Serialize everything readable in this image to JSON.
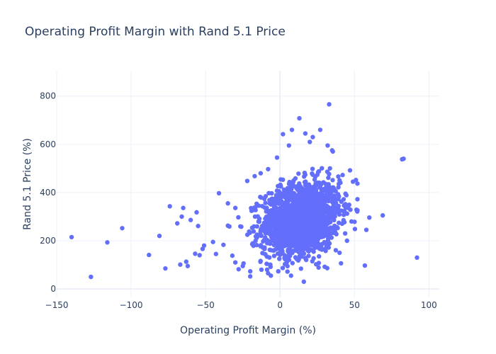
{
  "chart_data": {
    "type": "scatter",
    "title": "Operating Profit Margin with Rand 5.1 Price",
    "xlabel": "Operating Profit Margin (%)",
    "ylabel": "Rand 5.1 Price (%)",
    "xlim": [
      -150,
      107
    ],
    "ylim": [
      -35,
      905
    ],
    "xticks": [
      -150,
      -100,
      -50,
      0,
      50,
      100
    ],
    "yticks": [
      0,
      200,
      400,
      600,
      800
    ],
    "grid": true,
    "colors": {
      "marker": "#636efa",
      "grid": "#ebf0f8",
      "zeroline": "#ebf0f8",
      "text": "#2a3f5f"
    },
    "outliers": [
      {
        "x": -140,
        "y": 215
      },
      {
        "x": -127,
        "y": 50
      },
      {
        "x": -116,
        "y": 193
      },
      {
        "x": -106,
        "y": 252
      },
      {
        "x": -88,
        "y": 141
      },
      {
        "x": -81,
        "y": 220
      },
      {
        "x": -77,
        "y": 85
      },
      {
        "x": -74,
        "y": 343
      },
      {
        "x": -69,
        "y": 272
      },
      {
        "x": -67,
        "y": 101
      },
      {
        "x": -66,
        "y": 300
      },
      {
        "x": -65,
        "y": 336
      },
      {
        "x": -63,
        "y": 113
      },
      {
        "x": -62,
        "y": 95
      },
      {
        "x": -60,
        "y": 286
      },
      {
        "x": -57,
        "y": 146
      },
      {
        "x": -56,
        "y": 318
      },
      {
        "x": -55,
        "y": 261
      },
      {
        "x": -54,
        "y": 140
      },
      {
        "x": -52,
        "y": 166
      },
      {
        "x": -51,
        "y": 180
      },
      {
        "x": -43,
        "y": 145
      },
      {
        "x": -41,
        "y": 397
      },
      {
        "x": -38,
        "y": 183
      },
      {
        "x": -35,
        "y": 355
      },
      {
        "x": -34,
        "y": 259
      },
      {
        "x": -32,
        "y": 138
      },
      {
        "x": -30,
        "y": 336
      },
      {
        "x": -28,
        "y": 297
      },
      {
        "x": -26,
        "y": 258
      },
      {
        "x": -25,
        "y": 95
      },
      {
        "x": -22,
        "y": 448
      },
      {
        "x": -20,
        "y": 73
      },
      {
        "x": -17,
        "y": 468
      },
      {
        "x": -13,
        "y": 480
      },
      {
        "x": -8,
        "y": 497
      },
      {
        "x": -2,
        "y": 545
      },
      {
        "x": 2,
        "y": 642
      },
      {
        "x": 6,
        "y": 595
      },
      {
        "x": 8,
        "y": 660
      },
      {
        "x": 13,
        "y": 708
      },
      {
        "x": 17,
        "y": 645
      },
      {
        "x": 20,
        "y": 610
      },
      {
        "x": 22,
        "y": 630
      },
      {
        "x": 27,
        "y": 660
      },
      {
        "x": 32,
        "y": 595
      },
      {
        "x": 33,
        "y": 766
      },
      {
        "x": 35,
        "y": 575
      },
      {
        "x": 40,
        "y": 450
      },
      {
        "x": 44,
        "y": 395
      },
      {
        "x": 47,
        "y": 492
      },
      {
        "x": 49,
        "y": 445
      },
      {
        "x": 51,
        "y": 452
      },
      {
        "x": 57,
        "y": 97
      },
      {
        "x": 58,
        "y": 245
      },
      {
        "x": 60,
        "y": 296
      },
      {
        "x": 69,
        "y": 305
      },
      {
        "x": 82,
        "y": 538
      },
      {
        "x": 83,
        "y": 540
      },
      {
        "x": 92,
        "y": 130
      },
      {
        "x": 16,
        "y": 30
      },
      {
        "x": -20,
        "y": 52
      },
      {
        "x": 5,
        "y": 72
      },
      {
        "x": -8,
        "y": 65
      },
      {
        "x": 30,
        "y": 92
      },
      {
        "x": 45,
        "y": 200
      },
      {
        "x": 48,
        "y": 280
      },
      {
        "x": 40,
        "y": 150
      },
      {
        "x": -45,
        "y": 195
      },
      {
        "x": -30,
        "y": 110
      }
    ],
    "cluster": {
      "count": 1700,
      "x_mean": 14,
      "x_sd": 13,
      "y_mean": 290,
      "y_sd": 75,
      "x_range": [
        -35,
        52
      ],
      "y_range": [
        55,
        570
      ]
    }
  }
}
